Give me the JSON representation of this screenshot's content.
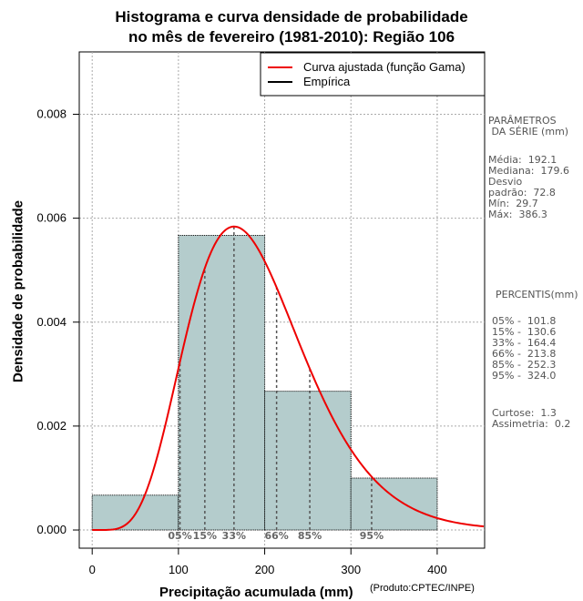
{
  "chart_data": {
    "type": "bar",
    "title_line1": "Histograma e curva densidade de probabilidade",
    "title_line2": "no mês de fevereiro (1981-2010): Região 106",
    "xlabel": "Precipitação acumulada (mm)",
    "ylabel": "Densidade de probabilidade",
    "credit": "(Produto:CPTEC/INPE)",
    "xlim": [
      -15,
      455
    ],
    "ylim": [
      -0.00035,
      0.0092
    ],
    "x_ticks": [
      0,
      100,
      200,
      300,
      400
    ],
    "x_tick_labels": [
      "0",
      "100",
      "200",
      "300",
      "400"
    ],
    "y_ticks": [
      0.0,
      0.002,
      0.004,
      0.006,
      0.008
    ],
    "y_tick_labels": [
      "0.000",
      "0.002",
      "0.004",
      "0.006",
      "0.008"
    ],
    "histogram": {
      "bins": [
        [
          0,
          100
        ],
        [
          100,
          200
        ],
        [
          200,
          300
        ],
        [
          300,
          400
        ]
      ],
      "values": [
        0.00067,
        0.00567,
        0.00267,
        0.001
      ],
      "fill": "#b4cccc"
    },
    "gamma_curve": {
      "name": "Curva ajustada (função Gama)",
      "color": "#ee0000",
      "mean": 192.1,
      "sd": 72.8
    },
    "legend": [
      {
        "label": "Curva ajustada (função Gama)",
        "color": "#ee0000"
      },
      {
        "label": "Empírica",
        "color": "#000000"
      }
    ],
    "percentile_marks": [
      {
        "label": "05%",
        "x": 101.8
      },
      {
        "label": "15%",
        "x": 130.6
      },
      {
        "label": "33%",
        "x": 164.4
      },
      {
        "label": "66%",
        "x": 213.8
      },
      {
        "label": "85%",
        "x": 252.3
      },
      {
        "label": "95%",
        "x": 324.0
      }
    ]
  },
  "sidebar": {
    "params_title": "PARÂMETROS\n DA SÉRIE (mm)",
    "params_body": "Média:  192.1\nMediana:  179.6\nDesvio\npadrão:  72.8\nMín:  29.7\nMáx:  386.3",
    "percentis_title": "PERCENTIS(mm)",
    "percentis_body": "05% -  101.8\n15% -  130.6\n33% -  164.4\n66% -  213.8\n85% -  252.3\n95% -  324.0",
    "stats_body": "Curtose:  1.3\nAssimetria:  0.2"
  }
}
